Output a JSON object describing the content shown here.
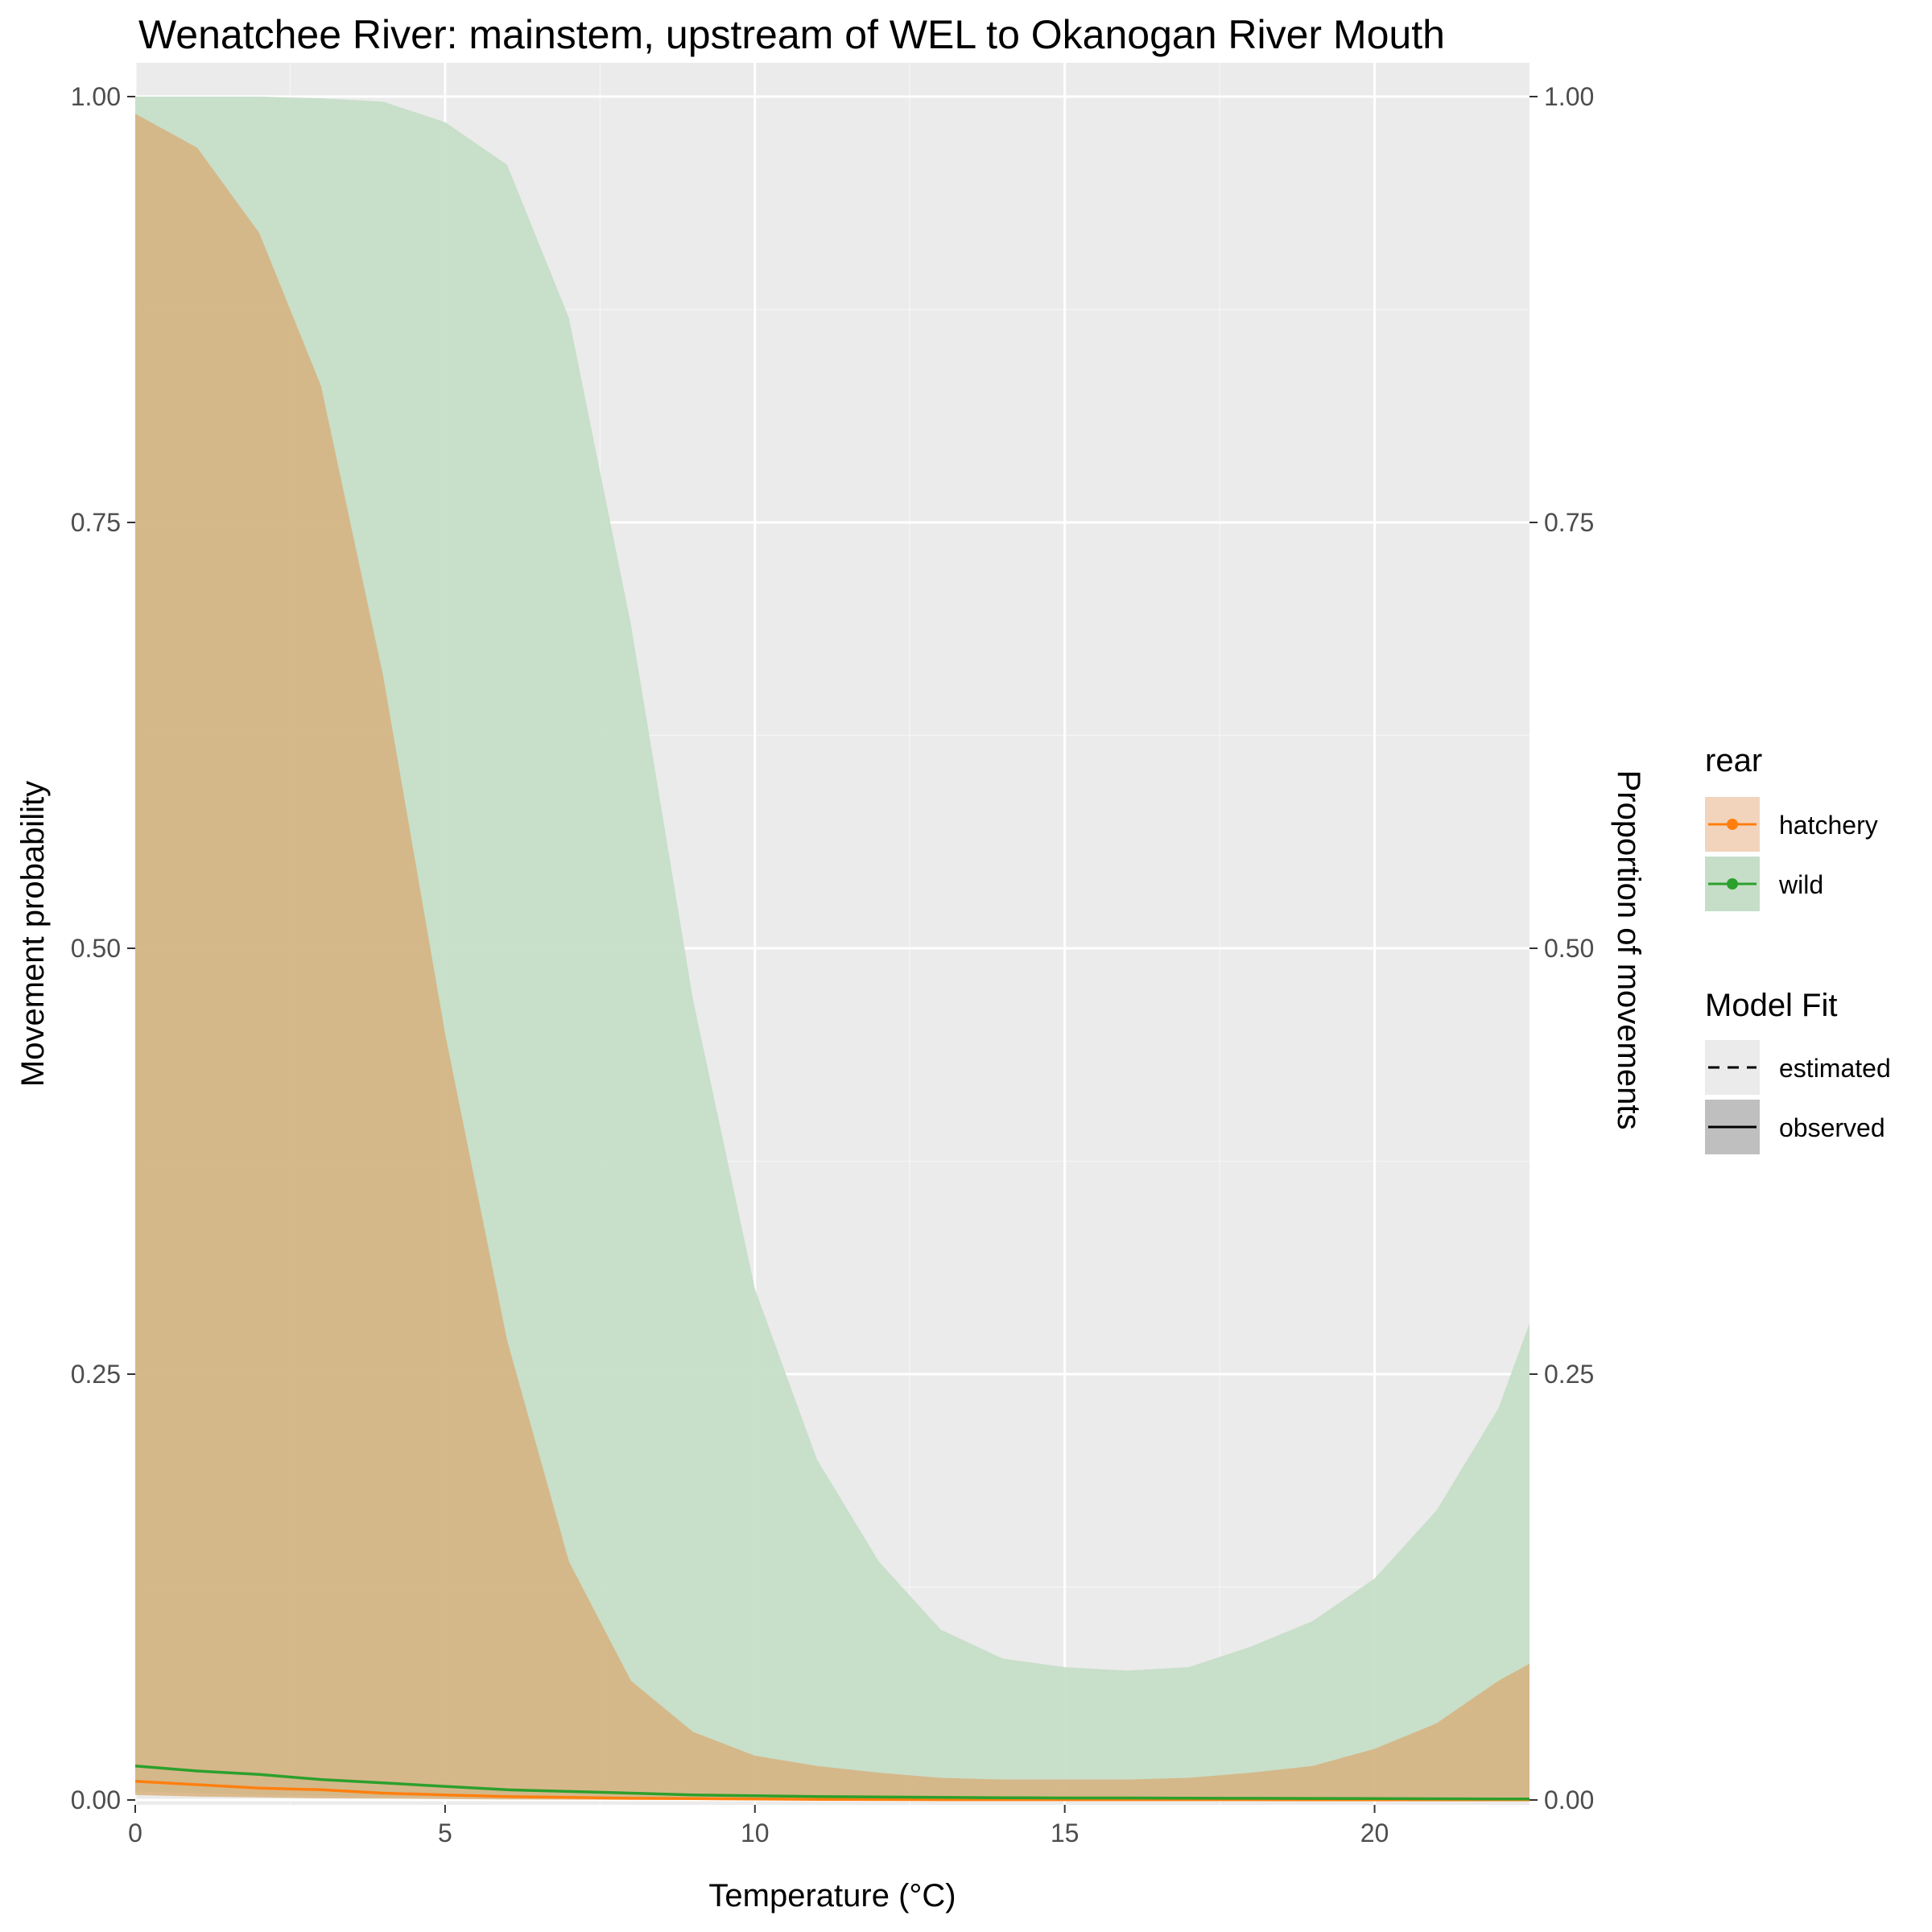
{
  "chart_data": {
    "type": "area",
    "title": "Wenatchee River: mainstem, upstream of WEL to Okanogan River Mouth",
    "xlabel": "Temperature (°C)",
    "ylabel": "Movement probability",
    "y2label": "Proportion of movements",
    "xlim": [
      0,
      22.5
    ],
    "ylim": [
      0,
      1
    ],
    "x_ticks": [
      0,
      5,
      10,
      15,
      20
    ],
    "x_tick_labels": [
      "0",
      "5",
      "10",
      "15",
      "20"
    ],
    "y_ticks": [
      0,
      0.25,
      0.5,
      0.75,
      1
    ],
    "y_tick_labels": [
      "0.00",
      "0.25",
      "0.50",
      "0.75",
      "1.00"
    ],
    "grid": true,
    "legend_position": "right",
    "legend": {
      "rear": {
        "title": "rear",
        "items": [
          {
            "label": "hatchery",
            "color": "#ff7f0e"
          },
          {
            "label": "wild",
            "color": "#2ca02c"
          }
        ]
      },
      "model_fit": {
        "title": "Model Fit",
        "items": [
          {
            "label": "estimated",
            "linetype": "dashed"
          },
          {
            "label": "observed",
            "linetype": "solid"
          }
        ]
      }
    },
    "series": [
      {
        "name": "hatchery",
        "color": "#ff7f0e",
        "fill_color": "#d8b07a",
        "x": [
          0,
          1,
          2,
          3,
          4,
          5,
          6,
          7,
          8,
          9,
          10,
          11,
          12,
          13,
          14,
          15,
          16,
          17,
          18,
          19,
          20,
          21,
          22,
          22.5
        ],
        "mean": [
          0.011,
          0.009,
          0.007,
          0.006,
          0.004,
          0.003,
          0.002,
          0.0015,
          0.001,
          0.0008,
          0.0006,
          0.0004,
          0.0003,
          0.0002,
          0.0002,
          0.0002,
          0.0002,
          0.0002,
          0.0002,
          0.0001,
          0.0001,
          0.0001,
          0.0001,
          0.0001
        ],
        "upper": [
          0.99,
          0.97,
          0.92,
          0.83,
          0.66,
          0.45,
          0.27,
          0.14,
          0.07,
          0.04,
          0.026,
          0.02,
          0.016,
          0.013,
          0.012,
          0.012,
          0.012,
          0.013,
          0.016,
          0.02,
          0.03,
          0.045,
          0.07,
          0.08
        ],
        "lower": [
          0.003,
          0.002,
          0.0015,
          0.001,
          0.0008,
          0.0005,
          0.0003,
          0.0002,
          0.0001,
          0.0001,
          0.0001,
          0.0001,
          0,
          0,
          0,
          0,
          0,
          0,
          0,
          0,
          0,
          0,
          0,
          0
        ]
      },
      {
        "name": "wild",
        "color": "#2ca02c",
        "fill_color": "#c6dec8",
        "x": [
          0,
          1,
          2,
          3,
          4,
          5,
          6,
          7,
          8,
          9,
          10,
          11,
          12,
          13,
          14,
          15,
          16,
          17,
          18,
          19,
          20,
          21,
          22,
          22.5
        ],
        "mean": [
          0.02,
          0.017,
          0.015,
          0.012,
          0.01,
          0.008,
          0.006,
          0.005,
          0.004,
          0.003,
          0.0025,
          0.002,
          0.0018,
          0.0015,
          0.0013,
          0.0012,
          0.0012,
          0.0011,
          0.001,
          0.0009,
          0.0008,
          0.0007,
          0.0006,
          0.0006
        ],
        "upper": [
          1,
          1,
          1,
          0.999,
          0.997,
          0.985,
          0.96,
          0.87,
          0.69,
          0.47,
          0.3,
          0.2,
          0.14,
          0.1,
          0.083,
          0.078,
          0.076,
          0.078,
          0.09,
          0.105,
          0.13,
          0.17,
          0.23,
          0.28
        ],
        "lower": [
          0.005,
          0.004,
          0.003,
          0.0025,
          0.002,
          0.0015,
          0.001,
          0.0008,
          0.0006,
          0.0005,
          0.0004,
          0.0003,
          0.0002,
          0.0002,
          0.0002,
          0.0002,
          0.0002,
          0.0002,
          0.0002,
          0.0002,
          0.0002,
          0.0002,
          0.0002,
          0.0002
        ]
      }
    ]
  }
}
